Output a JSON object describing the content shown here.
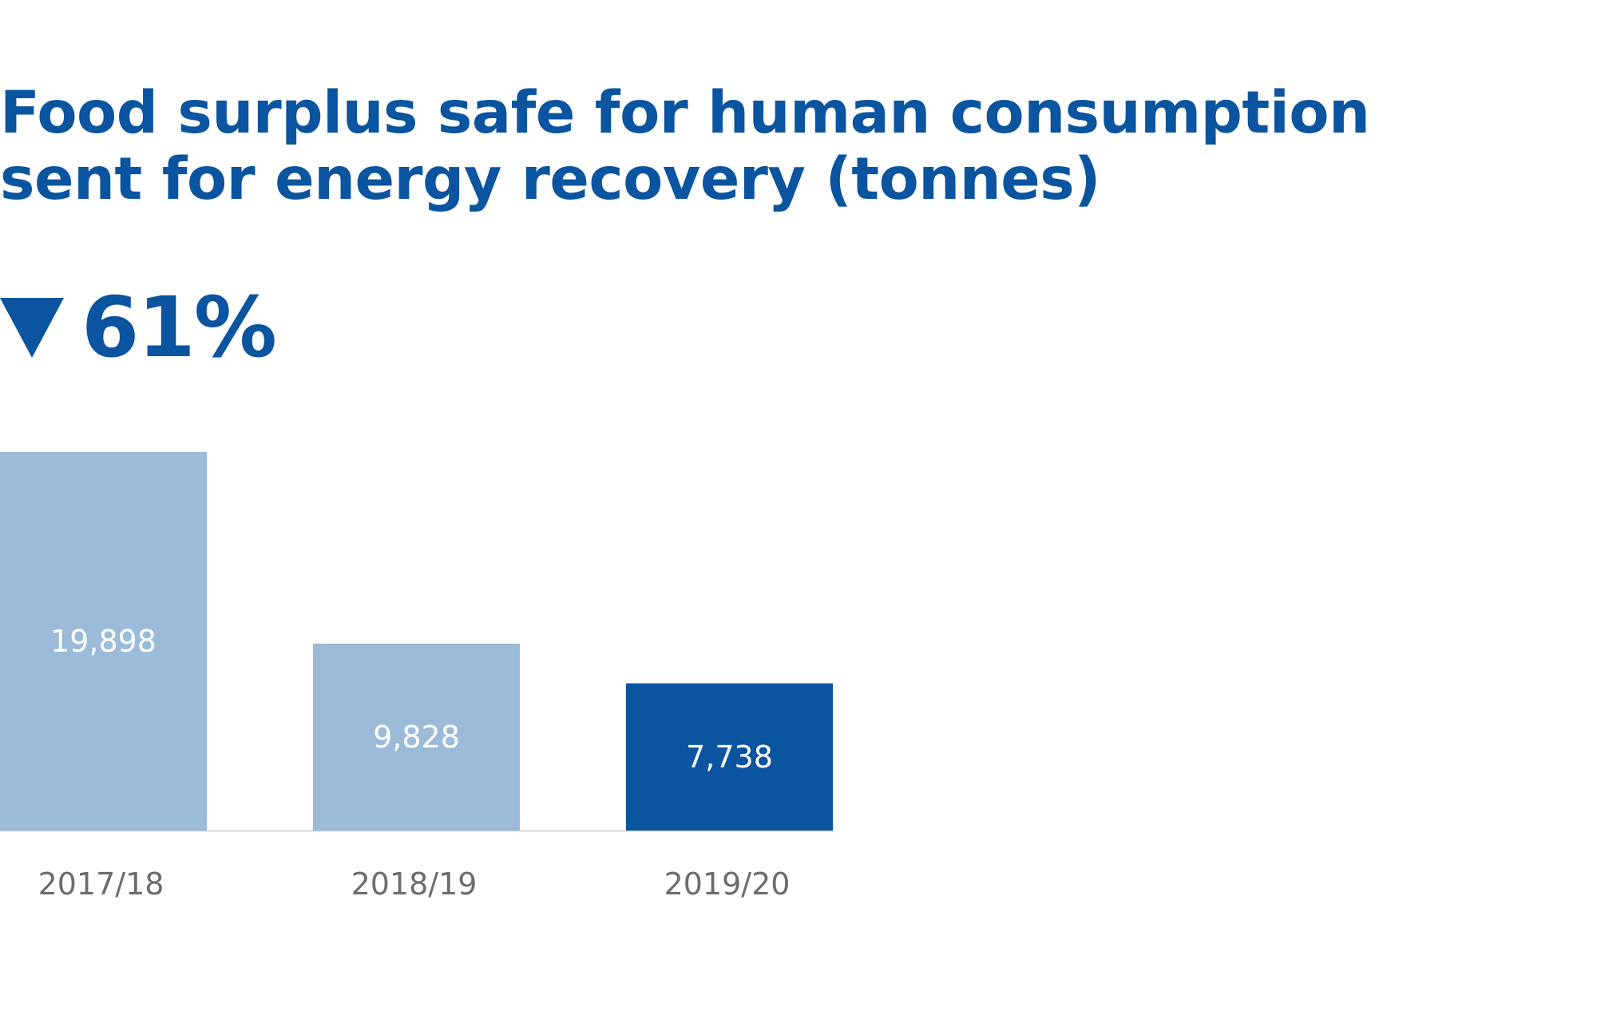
{
  "headline": {
    "line1": "Food surplus safe for human consumption",
    "line2": "sent for energy recovery (tonnes)"
  },
  "change": {
    "direction": "down",
    "icon": "triangle-down-icon",
    "value": "61%"
  },
  "colors": {
    "title": "#0a54a0",
    "bar_past": "#9bbbd9",
    "bar_current": "#0a54a0",
    "axis_line": "#c9c9c9",
    "tick_text": "#6d6b6b",
    "bar_text": "#ffffff"
  },
  "chart_data": {
    "type": "bar",
    "title": "Food surplus safe for human consumption sent for energy recovery (tonnes)",
    "categories": [
      "2017/18",
      "2018/19",
      "2019/20"
    ],
    "values": [
      19898,
      9828,
      7738
    ],
    "value_labels": [
      "19,898",
      "9,828",
      "7,738"
    ],
    "highlight_index": 2,
    "xlabel": "",
    "ylabel": "",
    "grid": false,
    "legend": "none"
  }
}
